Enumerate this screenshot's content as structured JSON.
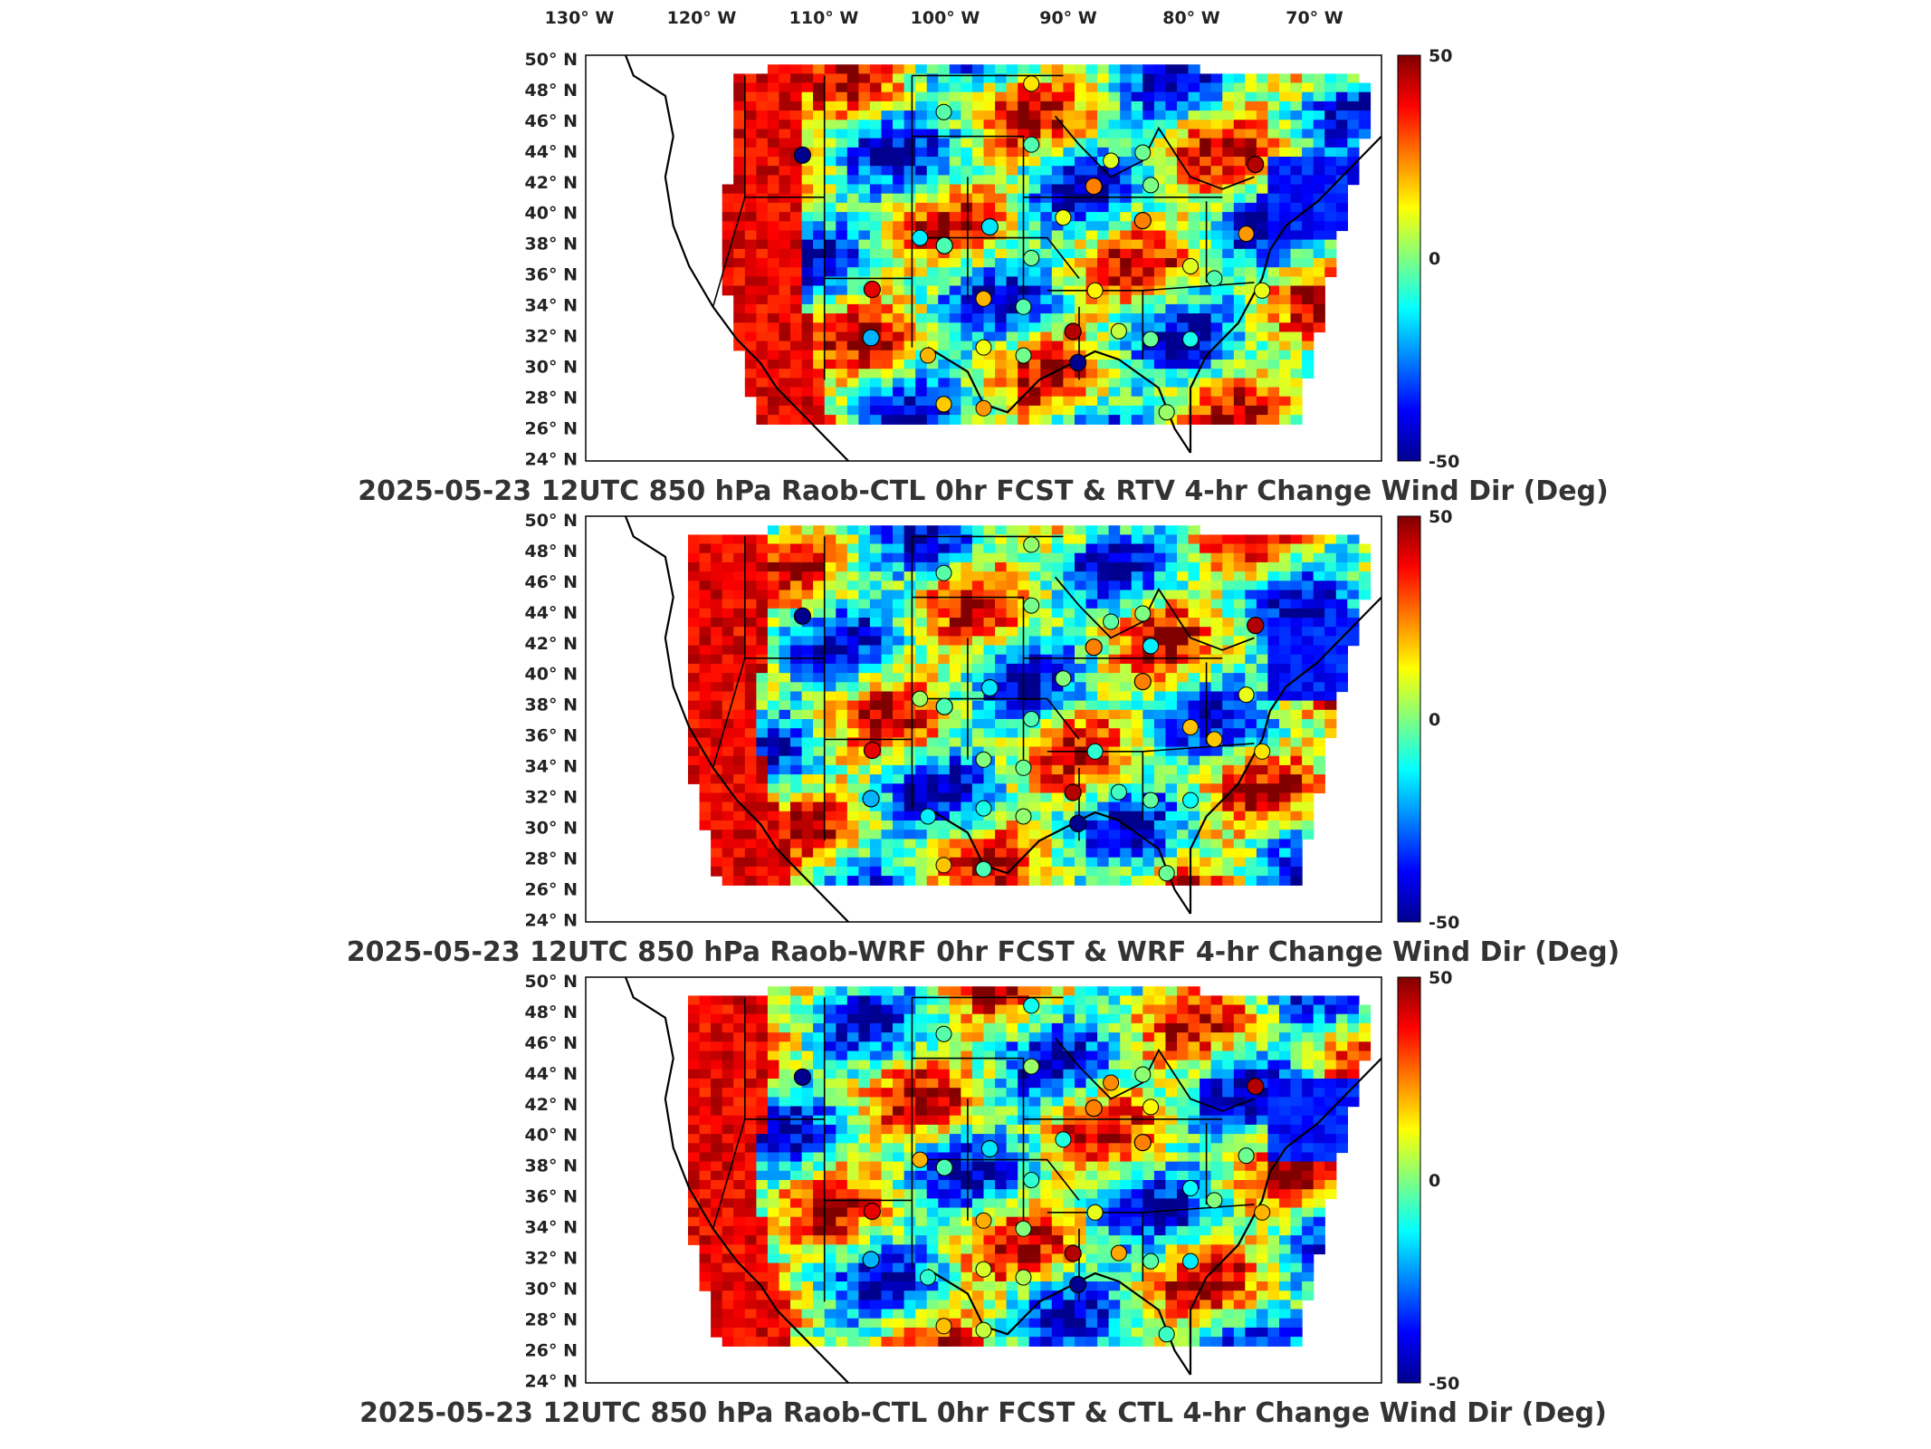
{
  "lon_labels": [
    "130",
    "120",
    "110",
    "100",
    "90",
    "80",
    "70"
  ],
  "lon_suffix": "W",
  "lat_labels": [
    "50",
    "48",
    "46",
    "44",
    "42",
    "40",
    "38",
    "36",
    "34",
    "32",
    "30",
    "28",
    "26",
    "24"
  ],
  "lat_suffix": "N",
  "degree_symbol": "°",
  "colorbar": {
    "max_label": "50",
    "zero_label": "0",
    "min_label": "-50",
    "colormap": "jet",
    "colors": [
      "#00008f",
      "#0000ff",
      "#0080ff",
      "#00ffff",
      "#80ff80",
      "#ffff00",
      "#ff8000",
      "#ff0000",
      "#800000"
    ]
  },
  "panels": [
    {
      "title": "2025-05-23 12UTC 850 hPa Raob-CTL 0hr FCST & RTV 4-hr Change Wind Dir (Deg)"
    },
    {
      "title": "2025-05-23 12UTC 850 hPa Raob-WRF 0hr FCST & WRF 4-hr Change Wind Dir (Deg)"
    },
    {
      "title": "2025-05-23 12UTC 850 hPa Raob-CTL 0hr FCST & CTL 4-hr Change Wind Dir (Deg)"
    }
  ],
  "chart_data": {
    "type": "heatmap",
    "variable": "4-hr Change Wind Dir (Deg)",
    "colorbar_range": [
      -50,
      50
    ],
    "map_extent": {
      "lon": [
        -130,
        -65
      ],
      "lat": [
        24,
        50
      ]
    },
    "raob_stations_approx": [
      {
        "lon": -112.3,
        "lat": 43.6,
        "value": -50
      },
      {
        "lon": -106.6,
        "lat": 35.0,
        "value": 40
      },
      {
        "lon": -106.7,
        "lat": 31.9,
        "value": -20
      },
      {
        "lon": -90.2,
        "lat": 32.3,
        "value": 45
      },
      {
        "lon": -89.8,
        "lat": 30.3,
        "value": -50
      },
      {
        "lon": -88.5,
        "lat": 41.6,
        "value": 25
      },
      {
        "lon": -84.5,
        "lat": 39.4,
        "value": 25
      },
      {
        "lon": -75.3,
        "lat": 43.0,
        "value": 45
      },
      {
        "lon": -97.0,
        "lat": 39.0,
        "value": -15
      },
      {
        "lon": -100.7,
        "lat": 37.8,
        "value": -5
      }
    ]
  }
}
